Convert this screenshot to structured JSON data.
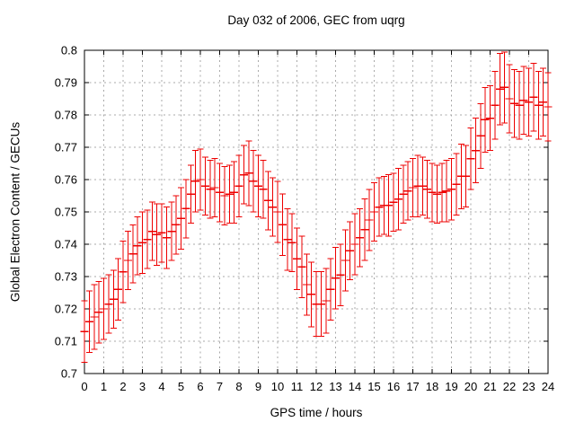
{
  "title": "Day 032 of 2006, GEC from uqrg",
  "chart_data": {
    "type": "errorbar",
    "title": "Day 032 of 2006, GEC from uqrg",
    "xlabel": "GPS time / hours",
    "ylabel": "Global Electron Content / GECUs",
    "xlim": [
      0,
      24
    ],
    "ylim": [
      0.7,
      0.8
    ],
    "grid": true,
    "legend": "none",
    "series_color": "#ee0000",
    "grid_color": "#a8a8a8",
    "axis_color": "#000000",
    "xticks": [
      0,
      1,
      2,
      3,
      4,
      5,
      6,
      7,
      8,
      9,
      10,
      11,
      12,
      13,
      14,
      15,
      16,
      17,
      18,
      19,
      20,
      21,
      22,
      23,
      24
    ],
    "xtick_labels": [
      "0",
      "1",
      "2",
      "3",
      "4",
      "5",
      "6",
      "7",
      "8",
      "9",
      "10",
      "11",
      "12",
      "13",
      "14",
      "15",
      "16",
      "17",
      "18",
      "19",
      "20",
      "21",
      "22",
      "23",
      "24"
    ],
    "ytick_values": [
      0.7,
      0.71,
      0.72,
      0.73,
      0.74,
      0.75,
      0.76,
      0.77,
      0.78,
      0.79,
      0.8
    ],
    "ytick_labels": [
      "0.7",
      "0.71",
      "0.72",
      "0.73",
      "0.74",
      "0.75",
      "0.76",
      "0.77",
      "0.78",
      "0.79",
      "0.8"
    ],
    "x": [
      0,
      0.25,
      0.5,
      0.75,
      1,
      1.25,
      1.5,
      1.75,
      2,
      2.25,
      2.5,
      2.75,
      3,
      3.25,
      3.5,
      3.75,
      4,
      4.25,
      4.5,
      4.75,
      5,
      5.25,
      5.5,
      5.75,
      6,
      6.25,
      6.5,
      6.75,
      7,
      7.25,
      7.5,
      7.75,
      8,
      8.25,
      8.5,
      8.75,
      9,
      9.25,
      9.5,
      9.75,
      10,
      10.25,
      10.5,
      10.75,
      11,
      11.25,
      11.5,
      11.75,
      12,
      12.25,
      12.5,
      12.75,
      13,
      13.25,
      13.5,
      13.75,
      14,
      14.25,
      14.5,
      14.75,
      15,
      15.25,
      15.5,
      15.75,
      16,
      16.25,
      16.5,
      16.75,
      17,
      17.25,
      17.5,
      17.75,
      18,
      18.25,
      18.5,
      18.75,
      19,
      19.25,
      19.5,
      19.75,
      20,
      20.25,
      20.5,
      20.75,
      21,
      21.25,
      21.5,
      21.75,
      22,
      22.25,
      22.5,
      22.75,
      23,
      23.25,
      23.5,
      23.75,
      24
    ],
    "y": [
      0.713,
      0.716,
      0.7175,
      0.719,
      0.72,
      0.7215,
      0.723,
      0.726,
      0.7315,
      0.735,
      0.737,
      0.7395,
      0.7405,
      0.7415,
      0.744,
      0.743,
      0.7435,
      0.742,
      0.744,
      0.746,
      0.748,
      0.751,
      0.7555,
      0.7595,
      0.76,
      0.758,
      0.757,
      0.7575,
      0.756,
      0.755,
      0.7555,
      0.756,
      0.758,
      0.7615,
      0.762,
      0.7595,
      0.758,
      0.757,
      0.7535,
      0.7515,
      0.75,
      0.746,
      0.7415,
      0.7405,
      0.7355,
      0.733,
      0.7275,
      0.7245,
      0.7215,
      0.7215,
      0.7225,
      0.726,
      0.7295,
      0.7305,
      0.735,
      0.738,
      0.74,
      0.742,
      0.7445,
      0.7475,
      0.75,
      0.7515,
      0.752,
      0.752,
      0.753,
      0.754,
      0.7555,
      0.7565,
      0.7575,
      0.758,
      0.758,
      0.757,
      0.756,
      0.7555,
      0.756,
      0.7565,
      0.757,
      0.7585,
      0.761,
      0.761,
      0.7665,
      0.769,
      0.7735,
      0.7785,
      0.779,
      0.783,
      0.788,
      0.7885,
      0.785,
      0.7835,
      0.783,
      0.7845,
      0.784,
      0.7855,
      0.783,
      0.784,
      0.7825
    ],
    "yerr": [
      0.0095,
      0.0095,
      0.01,
      0.0095,
      0.0095,
      0.009,
      0.009,
      0.0095,
      0.0095,
      0.009,
      0.009,
      0.009,
      0.0095,
      0.009,
      0.009,
      0.0095,
      0.009,
      0.0095,
      0.009,
      0.009,
      0.0095,
      0.009,
      0.009,
      0.0095,
      0.0095,
      0.009,
      0.009,
      0.009,
      0.009,
      0.009,
      0.009,
      0.0095,
      0.0095,
      0.009,
      0.01,
      0.0095,
      0.0095,
      0.009,
      0.009,
      0.009,
      0.0095,
      0.0095,
      0.0095,
      0.009,
      0.0095,
      0.0095,
      0.0095,
      0.01,
      0.01,
      0.01,
      0.01,
      0.0095,
      0.0095,
      0.0095,
      0.0095,
      0.009,
      0.0095,
      0.009,
      0.0095,
      0.0095,
      0.009,
      0.009,
      0.009,
      0.0095,
      0.009,
      0.0095,
      0.009,
      0.009,
      0.009,
      0.0095,
      0.009,
      0.009,
      0.009,
      0.009,
      0.009,
      0.0095,
      0.0095,
      0.0095,
      0.01,
      0.0095,
      0.0095,
      0.01,
      0.01,
      0.01,
      0.01,
      0.0105,
      0.011,
      0.011,
      0.0105,
      0.0105,
      0.0105,
      0.0105,
      0.0105,
      0.0105,
      0.0105,
      0.0105,
      0.0105
    ]
  }
}
